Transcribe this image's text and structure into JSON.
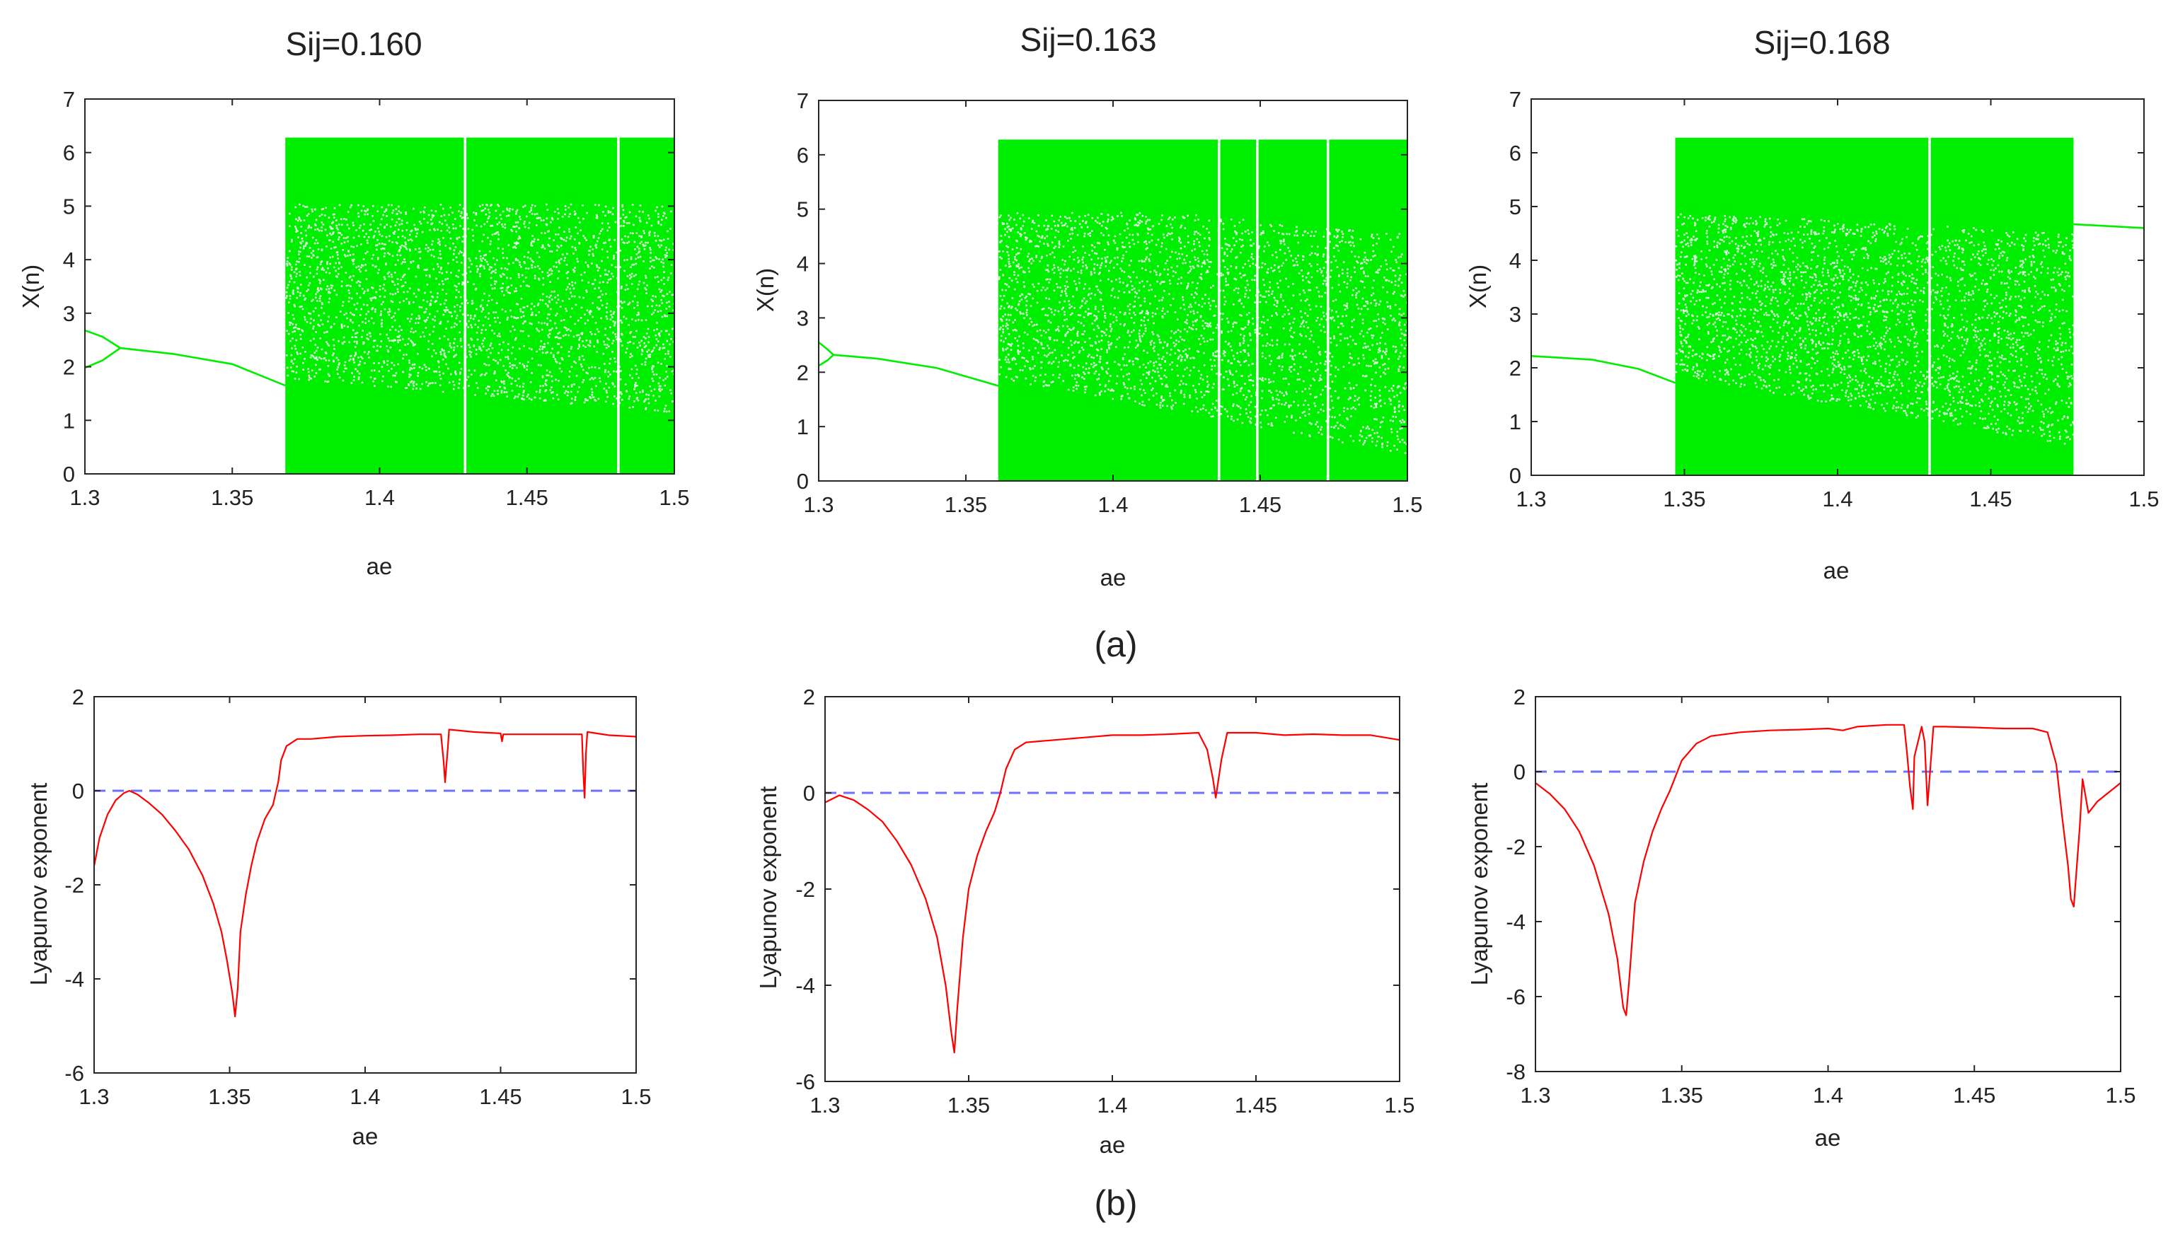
{
  "figure": {
    "caption_a": "(a)",
    "caption_b": "(b)"
  },
  "colors": {
    "bifurcation": "#00ee00",
    "lyapunov": "#ff0000",
    "zero_line": "#6f6fff",
    "axes": "#262626"
  },
  "chart_data": [
    {
      "type": "scatter",
      "id": "bif1",
      "title": "Sij=0.160",
      "xlabel": "ae",
      "ylabel": "X(n)",
      "xlim": [
        1.3,
        1.5
      ],
      "ylim": [
        0,
        7
      ],
      "xticks": [
        "1.3",
        "1.35",
        "1.4",
        "1.45",
        "1.5"
      ],
      "xtick_values": [
        1.3,
        1.35,
        1.4,
        1.45,
        1.5
      ],
      "yticks": [
        "0",
        "1",
        "2",
        "3",
        "4",
        "5",
        "6",
        "7"
      ],
      "ytick_values": [
        0,
        1,
        2,
        3,
        4,
        5,
        6,
        7
      ],
      "periodic_branches": [
        {
          "x": [
            1.3,
            1.306,
            1.312
          ],
          "y": [
            2.68,
            2.56,
            2.35
          ]
        },
        {
          "x": [
            1.3,
            1.306,
            1.312
          ],
          "y": [
            1.98,
            2.12,
            2.35
          ]
        },
        {
          "x": [
            1.312,
            1.33,
            1.35,
            1.368
          ],
          "y": [
            2.35,
            2.24,
            2.05,
            1.65
          ]
        }
      ],
      "chaos_region": [
        1.368,
        1.5
      ],
      "chaos_range": [
        0,
        6.28
      ],
      "periodic_windows": [
        1.429,
        1.481
      ],
      "lower_boundary": {
        "x": [
          1.368,
          1.5
        ],
        "y": [
          1.65,
          1.0
        ]
      },
      "upper_boundary": null
    },
    {
      "type": "scatter",
      "id": "bif2",
      "title": "Sij=0.163",
      "xlabel": "ae",
      "ylabel": "X(n)",
      "xlim": [
        1.3,
        1.5
      ],
      "ylim": [
        0,
        7
      ],
      "xticks": [
        "1.3",
        "1.35",
        "1.4",
        "1.45",
        "1.5"
      ],
      "xtick_values": [
        1.3,
        1.35,
        1.4,
        1.45,
        1.5
      ],
      "yticks": [
        "0",
        "1",
        "2",
        "3",
        "4",
        "5",
        "6",
        "7"
      ],
      "ytick_values": [
        0,
        1,
        2,
        3,
        4,
        5,
        6,
        7
      ],
      "periodic_branches": [
        {
          "x": [
            1.3,
            1.303,
            1.305
          ],
          "y": [
            2.55,
            2.42,
            2.32
          ]
        },
        {
          "x": [
            1.3,
            1.303,
            1.305
          ],
          "y": [
            2.12,
            2.22,
            2.32
          ]
        },
        {
          "x": [
            1.305,
            1.32,
            1.34,
            1.361
          ],
          "y": [
            2.32,
            2.25,
            2.08,
            1.75
          ]
        }
      ],
      "chaos_region": [
        1.361,
        1.5
      ],
      "chaos_range": [
        0,
        6.28
      ],
      "periodic_windows": [
        1.436,
        1.449,
        1.473
      ],
      "lower_boundary": {
        "x": [
          1.361,
          1.5
        ],
        "y": [
          1.75,
          0.35
        ]
      },
      "upper_boundary": {
        "x": [
          1.42,
          1.5
        ],
        "y": [
          5.1,
          4.7
        ]
      }
    },
    {
      "type": "scatter",
      "id": "bif3",
      "title": "Sij=0.168",
      "xlabel": "ae",
      "ylabel": "X(n)",
      "xlim": [
        1.3,
        1.5
      ],
      "ylim": [
        0,
        7
      ],
      "xticks": [
        "1.3",
        "1.35",
        "1.4",
        "1.45",
        "1.5"
      ],
      "xtick_values": [
        1.3,
        1.35,
        1.4,
        1.45,
        1.5
      ],
      "yticks": [
        "0",
        "1",
        "2",
        "3",
        "4",
        "5",
        "6",
        "7"
      ],
      "ytick_values": [
        0,
        1,
        2,
        3,
        4,
        5,
        6,
        7
      ],
      "periodic_branches": [
        {
          "x": [
            1.3,
            1.32,
            1.335,
            1.347
          ],
          "y": [
            2.22,
            2.15,
            1.98,
            1.72
          ]
        },
        {
          "x": [
            1.477,
            1.49,
            1.5
          ],
          "y": [
            4.67,
            4.63,
            4.6
          ]
        }
      ],
      "chaos_region": [
        1.347,
        1.477
      ],
      "chaos_range": [
        0,
        6.28
      ],
      "periodic_windows": [
        1.43
      ],
      "lower_boundary": {
        "x": [
          1.347,
          1.477
        ],
        "y": [
          1.72,
          0.4
        ]
      },
      "upper_boundary": {
        "x": [
          1.35,
          1.477
        ],
        "y": [
          5.05,
          4.67
        ]
      }
    },
    {
      "type": "line",
      "id": "lyap1",
      "title": "",
      "xlabel": "ae",
      "ylabel": "Lyapunov exponent",
      "xlim": [
        1.3,
        1.5
      ],
      "ylim": [
        -6,
        2
      ],
      "xticks": [
        "1.3",
        "1.35",
        "1.4",
        "1.45",
        "1.5"
      ],
      "xtick_values": [
        1.3,
        1.35,
        1.4,
        1.45,
        1.5
      ],
      "yticks": [
        "-6",
        "-4",
        "-2",
        "0",
        "2"
      ],
      "ytick_values": [
        -6,
        -4,
        -2,
        0,
        2
      ],
      "reference_line": 0,
      "x": [
        1.3,
        1.302,
        1.305,
        1.308,
        1.311,
        1.313,
        1.316,
        1.32,
        1.325,
        1.33,
        1.335,
        1.34,
        1.344,
        1.347,
        1.349,
        1.351,
        1.352,
        1.353,
        1.354,
        1.356,
        1.358,
        1.36,
        1.363,
        1.366,
        1.368,
        1.369,
        1.371,
        1.375,
        1.38,
        1.39,
        1.4,
        1.41,
        1.42,
        1.428,
        1.429,
        1.4295,
        1.4305,
        1.431,
        1.44,
        1.45,
        1.4505,
        1.451,
        1.46,
        1.47,
        1.48,
        1.4805,
        1.481,
        1.4815,
        1.482,
        1.49,
        1.5
      ],
      "y": [
        -1.6,
        -1.0,
        -0.5,
        -0.2,
        -0.05,
        0.0,
        -0.08,
        -0.25,
        -0.5,
        -0.85,
        -1.25,
        -1.8,
        -2.4,
        -3.0,
        -3.6,
        -4.3,
        -4.8,
        -4.2,
        -3.0,
        -2.2,
        -1.6,
        -1.1,
        -0.6,
        -0.3,
        0.2,
        0.65,
        0.95,
        1.1,
        1.1,
        1.15,
        1.17,
        1.18,
        1.2,
        1.2,
        0.6,
        0.18,
        0.9,
        1.3,
        1.25,
        1.22,
        1.05,
        1.2,
        1.2,
        1.2,
        1.2,
        0.4,
        -0.15,
        0.8,
        1.25,
        1.18,
        1.15
      ]
    },
    {
      "type": "line",
      "id": "lyap2",
      "title": "",
      "xlabel": "ae",
      "ylabel": "Lyapunov exponent",
      "xlim": [
        1.3,
        1.5
      ],
      "ylim": [
        -6,
        2
      ],
      "xticks": [
        "1.3",
        "1.35",
        "1.4",
        "1.45",
        "1.5"
      ],
      "xtick_values": [
        1.3,
        1.35,
        1.4,
        1.45,
        1.5
      ],
      "yticks": [
        "-6",
        "-4",
        "-2",
        "0",
        "2"
      ],
      "ytick_values": [
        -6,
        -4,
        -2,
        0,
        2
      ],
      "reference_line": 0,
      "x": [
        1.3,
        1.305,
        1.31,
        1.315,
        1.32,
        1.325,
        1.33,
        1.335,
        1.339,
        1.342,
        1.344,
        1.345,
        1.346,
        1.348,
        1.35,
        1.353,
        1.356,
        1.359,
        1.361,
        1.363,
        1.366,
        1.37,
        1.38,
        1.39,
        1.4,
        1.41,
        1.42,
        1.43,
        1.433,
        1.435,
        1.436,
        1.438,
        1.44,
        1.45,
        1.46,
        1.47,
        1.48,
        1.49,
        1.5
      ],
      "y": [
        -0.2,
        -0.05,
        -0.15,
        -0.35,
        -0.6,
        -1.0,
        -1.5,
        -2.2,
        -3.0,
        -4.0,
        -5.0,
        -5.4,
        -4.5,
        -3.0,
        -2.0,
        -1.3,
        -0.8,
        -0.4,
        0.0,
        0.5,
        0.9,
        1.05,
        1.1,
        1.15,
        1.2,
        1.2,
        1.22,
        1.25,
        0.9,
        0.3,
        -0.1,
        0.7,
        1.25,
        1.25,
        1.2,
        1.22,
        1.2,
        1.2,
        1.1
      ]
    },
    {
      "type": "line",
      "id": "lyap3",
      "title": "",
      "xlabel": "ae",
      "ylabel": "Lyapunov exponent",
      "xlim": [
        1.3,
        1.5
      ],
      "ylim": [
        -8,
        2
      ],
      "xticks": [
        "1.3",
        "1.35",
        "1.4",
        "1.45",
        "1.5"
      ],
      "xtick_values": [
        1.3,
        1.35,
        1.4,
        1.45,
        1.5
      ],
      "yticks": [
        "-8",
        "-6",
        "-4",
        "-2",
        "0",
        "2"
      ],
      "ytick_values": [
        -8,
        -6,
        -4,
        -2,
        0,
        2
      ],
      "reference_line": 0,
      "x": [
        1.3,
        1.305,
        1.31,
        1.315,
        1.32,
        1.325,
        1.328,
        1.33,
        1.331,
        1.332,
        1.334,
        1.337,
        1.34,
        1.343,
        1.346,
        1.348,
        1.35,
        1.355,
        1.36,
        1.37,
        1.38,
        1.39,
        1.4,
        1.405,
        1.41,
        1.42,
        1.426,
        1.427,
        1.428,
        1.429,
        1.4295,
        1.432,
        1.433,
        1.434,
        1.436,
        1.44,
        1.45,
        1.46,
        1.47,
        1.475,
        1.478,
        1.48,
        1.482,
        1.483,
        1.484,
        1.486,
        1.487,
        1.489,
        1.492,
        1.5
      ],
      "y": [
        -0.3,
        -0.6,
        -1.0,
        -1.6,
        -2.5,
        -3.8,
        -5.0,
        -6.3,
        -6.5,
        -5.6,
        -3.5,
        -2.4,
        -1.6,
        -1.0,
        -0.5,
        -0.1,
        0.3,
        0.75,
        0.95,
        1.05,
        1.1,
        1.12,
        1.15,
        1.1,
        1.2,
        1.25,
        1.25,
        0.5,
        -0.4,
        -1.0,
        0.4,
        1.2,
        0.8,
        -0.9,
        1.2,
        1.2,
        1.18,
        1.15,
        1.15,
        1.05,
        0.2,
        -1.2,
        -2.5,
        -3.4,
        -3.6,
        -1.5,
        -0.2,
        -1.1,
        -0.8,
        -0.3
      ]
    }
  ]
}
